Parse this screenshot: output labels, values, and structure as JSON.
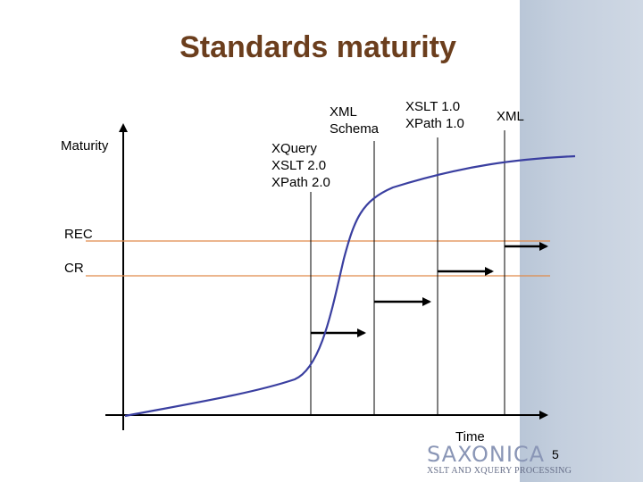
{
  "title": "Standards maturity",
  "axes": {
    "y_label": "Maturity",
    "x_label": "Time"
  },
  "levels": {
    "rec": "REC",
    "cr": "CR"
  },
  "milestones": {
    "xquery": "XQuery\nXSLT 2.0\nXPath 2.0",
    "xml_schema": "XML\nSchema",
    "xslt1": "XSLT 1.0\nXPath 1.0",
    "xml": "XML"
  },
  "footer": {
    "brand": "SAXONICA",
    "tagline": "XSLT AND XQUERY PROCESSING",
    "page_number": "5"
  },
  "colors": {
    "title": "#6b3e1d",
    "curve": "#3a3fa0",
    "level_line": "#e08a4a",
    "side_panel": "#c4cfde"
  }
}
